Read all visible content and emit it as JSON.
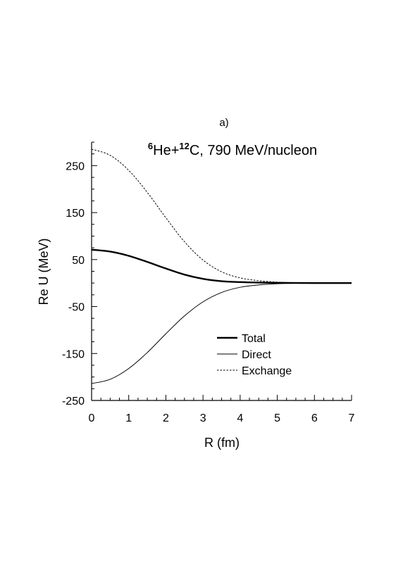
{
  "panel_label": "a)",
  "chart_data": {
    "type": "line",
    "title_parts": [
      {
        "text": "6",
        "sup": true
      },
      {
        "text": "He+",
        "sup": false
      },
      {
        "text": "12",
        "sup": true
      },
      {
        "text": "C, 790 MeV/nucleon",
        "sup": false
      }
    ],
    "xlabel": "R (fm)",
    "ylabel": "Re U (MeV)",
    "xlim": [
      0,
      7
    ],
    "ylim": [
      -250,
      300
    ],
    "x_ticks": [
      0,
      1,
      2,
      3,
      4,
      5,
      6,
      7
    ],
    "x_tick_labels": [
      "0",
      "1",
      "2",
      "3",
      "4",
      "5",
      "6",
      "7"
    ],
    "y_ticks": [
      -250,
      -150,
      -50,
      50,
      150,
      250
    ],
    "y_tick_labels": [
      "-250",
      "-150",
      "-50",
      "50",
      "150",
      "250"
    ],
    "grid": false,
    "legend_position": "lower-right",
    "x": [
      0,
      0.5,
      1,
      1.5,
      2,
      2.5,
      3,
      3.5,
      4,
      4.5,
      5,
      5.5,
      6,
      6.5,
      7
    ],
    "series": [
      {
        "name": "Total",
        "style": "thick-solid",
        "values": [
          71,
          67,
          58,
          45,
          31,
          18,
          9,
          4,
          2,
          1,
          0.5,
          0.2,
          0,
          0,
          0
        ]
      },
      {
        "name": "Direct",
        "style": "thin-solid",
        "values": [
          -214,
          -205,
          -182,
          -148,
          -108,
          -70,
          -40,
          -20,
          -9,
          -4,
          -1.5,
          -0.5,
          -0.2,
          0,
          0
        ]
      },
      {
        "name": "Exchange",
        "style": "dotted",
        "values": [
          285,
          272,
          240,
          193,
          139,
          88,
          49,
          24,
          11,
          5,
          2,
          0.7,
          0.2,
          0,
          0
        ]
      }
    ]
  }
}
